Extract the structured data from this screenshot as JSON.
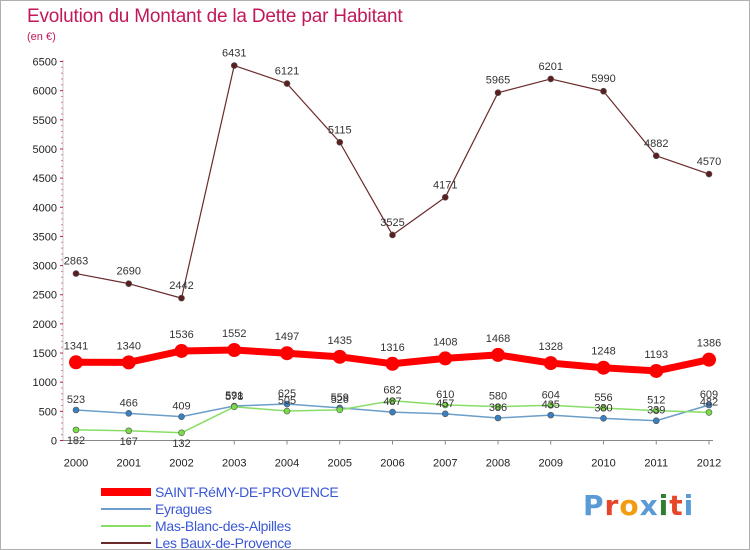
{
  "title": "Evolution du Montant de la Dette par Habitant",
  "unit": "(en €)",
  "brand": "Proxiti",
  "brand_colors": [
    "#5b9bd5",
    "#e8462a",
    "#f39c12",
    "#5b9bd5",
    "#2e7d32",
    "#e8462a",
    "#5b9bd5"
  ],
  "chart_data": {
    "type": "line",
    "title": "Evolution du Montant de la Dette par Habitant",
    "ylabel": "(en €)",
    "x": [
      "2000",
      "2001",
      "2002",
      "2003",
      "2004",
      "2005",
      "2006",
      "2007",
      "2008",
      "2009",
      "2010",
      "2011",
      "2012"
    ],
    "ylim": [
      0,
      6500
    ],
    "yticks": [
      0,
      500,
      1000,
      1500,
      2000,
      2500,
      3000,
      3500,
      4000,
      4500,
      5000,
      5500,
      6000,
      6500
    ],
    "grid": false,
    "legend_position": "bottom-left",
    "series": [
      {
        "name": "SAINT-RéMY-DE-PROVENCE",
        "color": "#ff0000",
        "marker": "#ff0000",
        "width": 7,
        "label_pos": "above",
        "values": [
          1341,
          1340,
          1536,
          1552,
          1497,
          1435,
          1316,
          1408,
          1468,
          1328,
          1248,
          1193,
          1386
        ]
      },
      {
        "name": "Eyragues",
        "color": "#6b9ec9",
        "marker": "#3a7fc0",
        "width": 1.5,
        "label_pos": "above",
        "values": [
          523,
          466,
          409,
          591,
          625,
          559,
          487,
          457,
          386,
          435,
          380,
          339,
          609
        ]
      },
      {
        "name": "Mas-Blanc-des-Alpilles",
        "color": "#88dd66",
        "marker": "#77dd44",
        "width": 1.5,
        "label_pos": "mixed",
        "values": [
          182,
          167,
          132,
          578,
          505,
          526,
          682,
          610,
          580,
          604,
          556,
          512,
          482
        ]
      },
      {
        "name": "Les Baux-de-Provence",
        "color": "#6b2a2a",
        "marker": "#5c1f1f",
        "width": 1.2,
        "label_pos": "above",
        "values": [
          2863,
          2690,
          2442,
          6431,
          6121,
          5115,
          3525,
          4171,
          5965,
          6201,
          5990,
          4882,
          4570
        ]
      }
    ]
  }
}
